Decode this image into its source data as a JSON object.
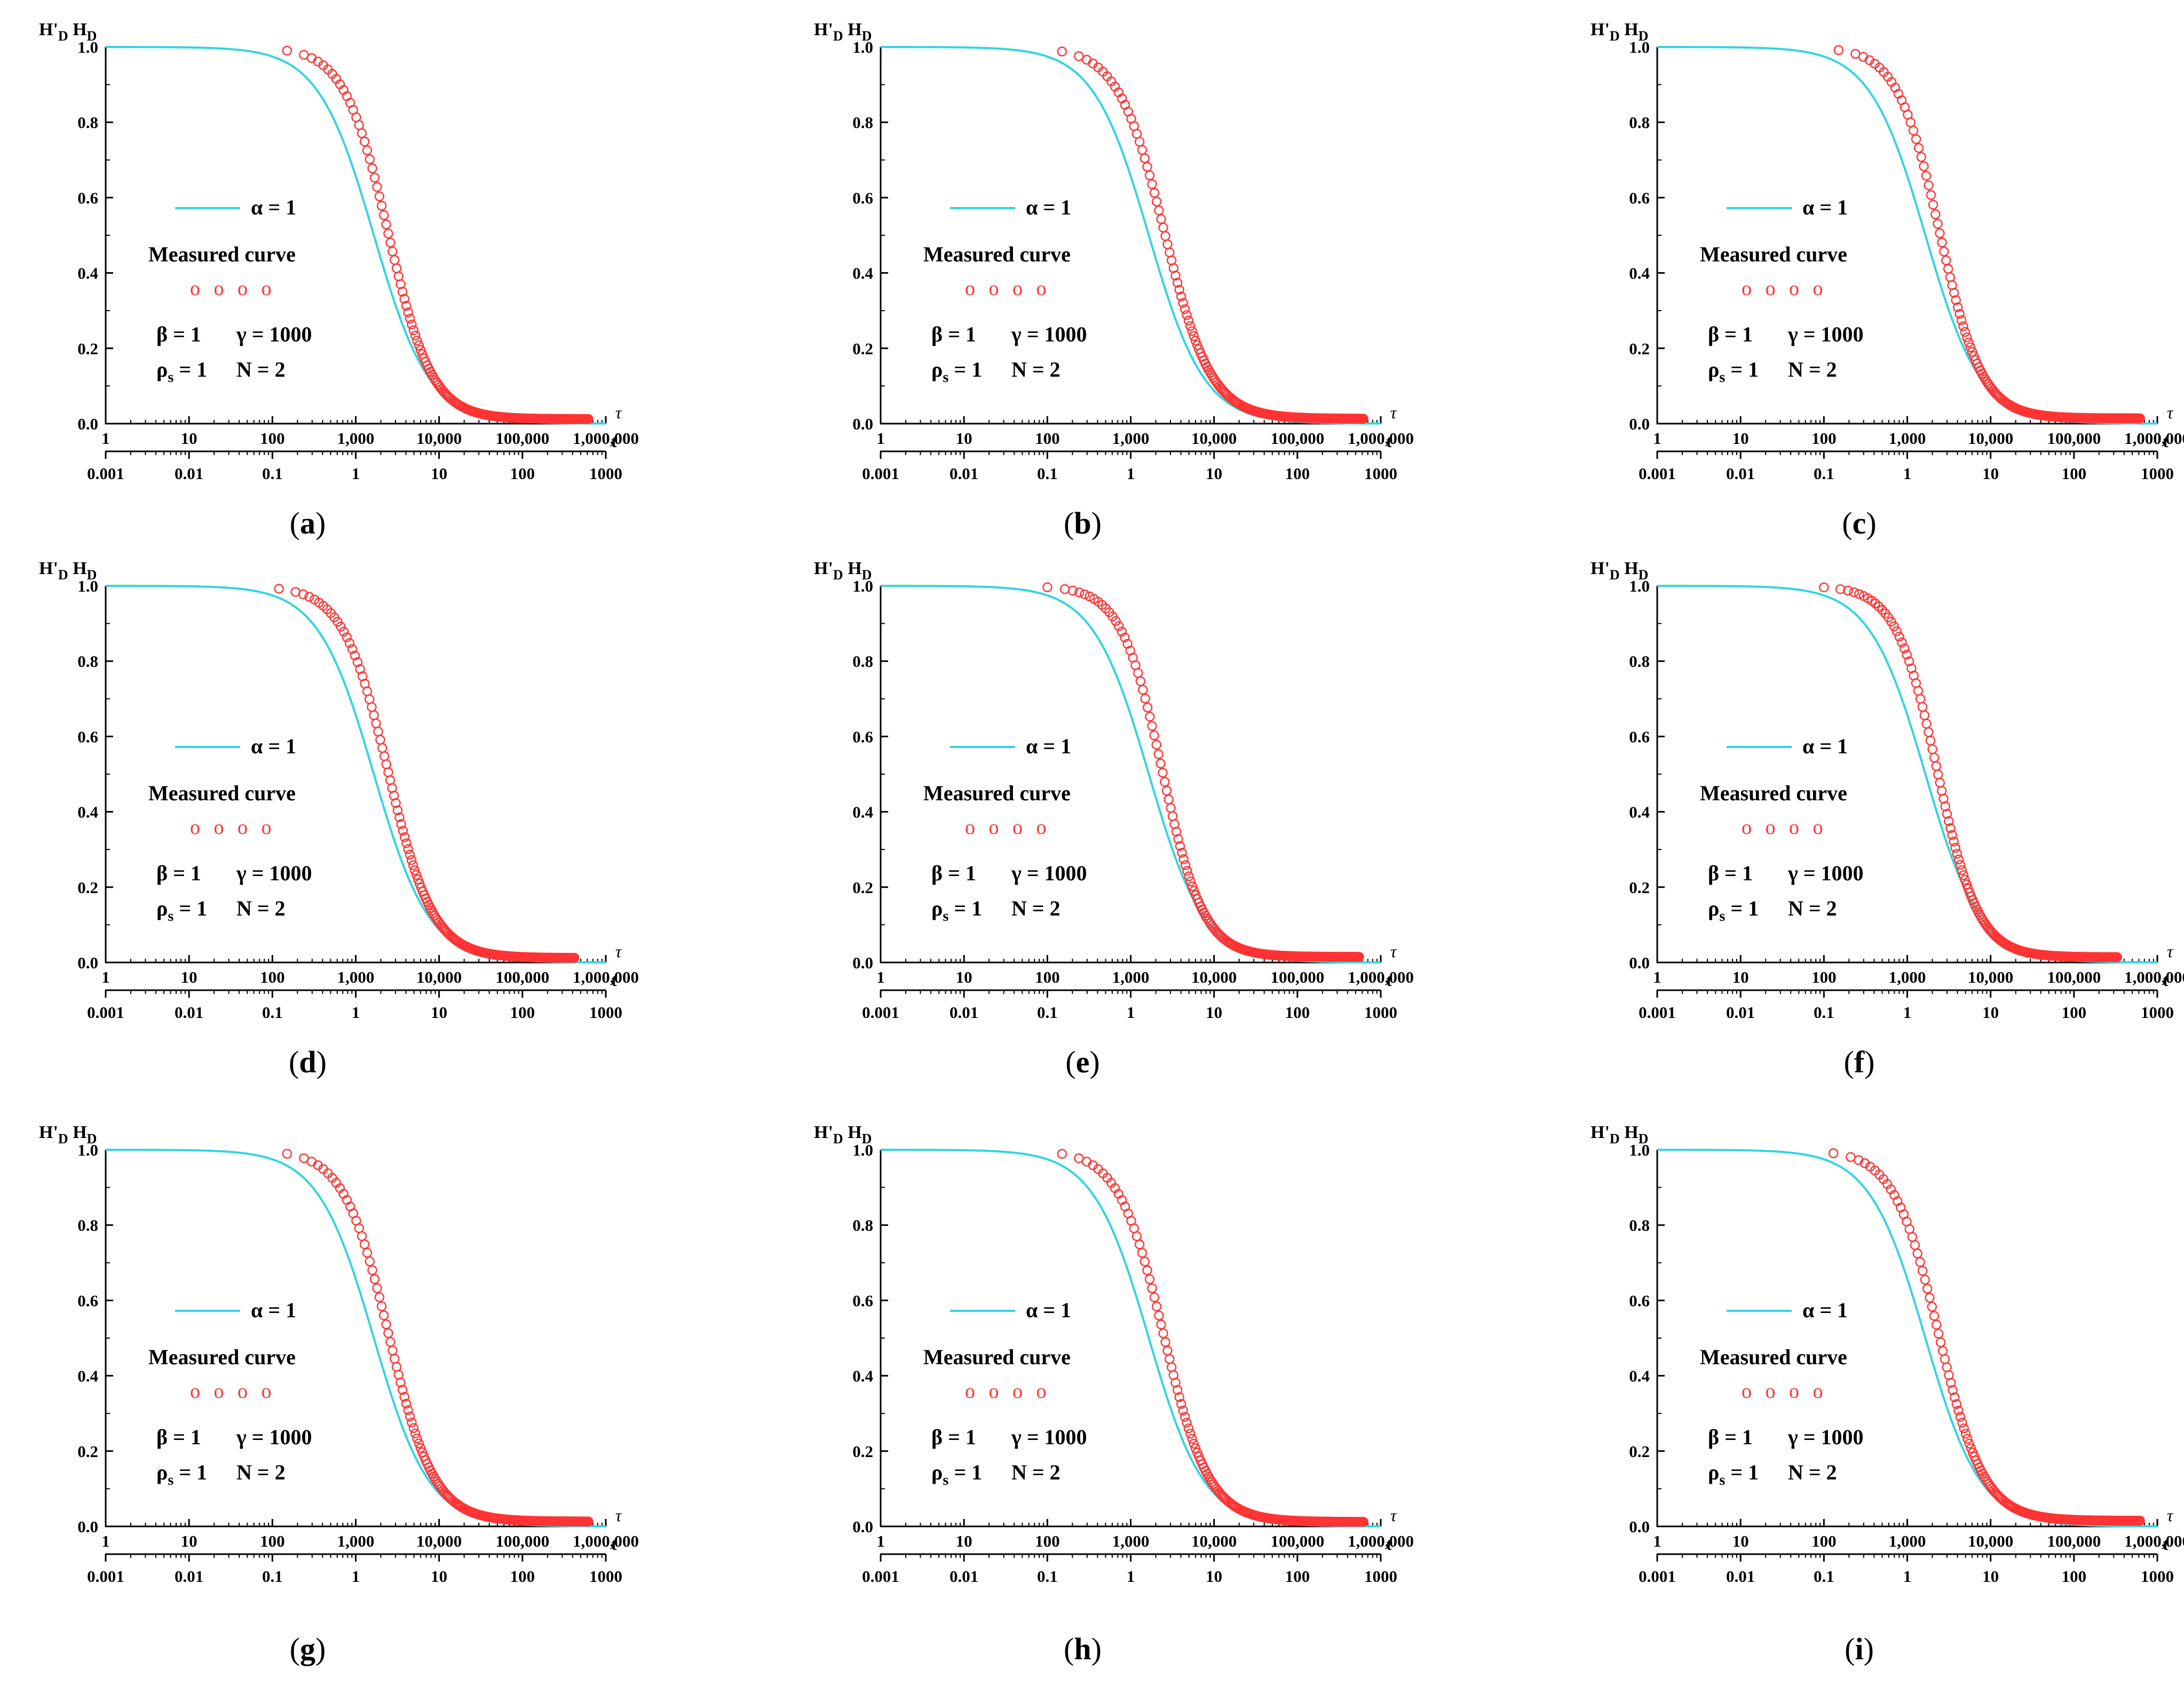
{
  "figure": {
    "colors": {
      "theory": "#33d4e0",
      "measured": "#ff3333",
      "axis": "#000000"
    },
    "common": {
      "type": "line+scatter",
      "y_axis_labels": [
        "H'",
        "D",
        "H",
        "D"
      ],
      "tau_symbol": "τ",
      "t_symbol": "t",
      "y_ticks": [
        "0.0",
        "0.2",
        "0.4",
        "0.6",
        "0.8",
        "1.0"
      ],
      "tau_ticks": [
        "1",
        "10",
        "100",
        "1,000",
        "10,000",
        "100,000",
        "1,000,000"
      ],
      "t_ticks": [
        "0.001",
        "0.01",
        "0.1",
        "1",
        "10",
        "100",
        "1000"
      ],
      "legend": {
        "theory_label": "α = 1",
        "measured_label": "Measured curve",
        "measured_marks": "o o o o",
        "param_line1_a": "β = 1",
        "param_line1_b": "γ = 1000",
        "param_line2_a_main": "ρ",
        "param_line2_a_sub": "s",
        "param_line2_a_rest": " = 1",
        "param_line2_b": "N = 2"
      }
    }
  },
  "chart_data": [
    {
      "panel": "a",
      "caption": "(a)",
      "type": "line+scatter",
      "xscale": "log",
      "xlim_tau": [
        1,
        1000000
      ],
      "xlim_t": [
        0.001,
        1000
      ],
      "ylim": [
        0,
        1
      ],
      "theory": {
        "name": "α = 1",
        "tau_half": 1650,
        "steep": 1.3
      },
      "measured": {
        "name": "Measured curve",
        "tau_start": 150,
        "tau_end": 620000,
        "tau_half": 2450,
        "steep": 1.65,
        "tail": 0.012
      }
    },
    {
      "panel": "b",
      "caption": "(b)",
      "type": "line+scatter",
      "xscale": "log",
      "xlim_tau": [
        1,
        1000000
      ],
      "xlim_t": [
        0.001,
        1000
      ],
      "ylim": [
        0,
        1
      ],
      "theory": {
        "name": "α = 1",
        "tau_half": 1650,
        "steep": 1.3
      },
      "measured": {
        "name": "Measured curve",
        "tau_start": 150,
        "tau_end": 620000,
        "tau_half": 2550,
        "steep": 1.55,
        "tail": 0.013
      }
    },
    {
      "panel": "c",
      "caption": "(c)",
      "type": "line+scatter",
      "xscale": "log",
      "xlim_tau": [
        1,
        1000000
      ],
      "xlim_t": [
        0.001,
        1000
      ],
      "ylim": [
        0,
        1
      ],
      "theory": {
        "name": "α = 1",
        "tau_half": 1650,
        "steep": 1.3
      },
      "measured": {
        "name": "Measured curve",
        "tau_start": 150,
        "tau_end": 620000,
        "tau_half": 2450,
        "steep": 1.7,
        "tail": 0.014
      }
    },
    {
      "panel": "d",
      "caption": "(d)",
      "type": "line+scatter",
      "xscale": "log",
      "xlim_tau": [
        1,
        1000000
      ],
      "xlim_t": [
        0.001,
        1000
      ],
      "ylim": [
        0,
        1
      ],
      "theory": {
        "name": "α = 1",
        "tau_half": 1650,
        "steep": 1.3
      },
      "measured": {
        "name": "Measured curve",
        "tau_start": 120,
        "tau_end": 420000,
        "tau_half": 2450,
        "steep": 1.6,
        "tail": 0.012
      }
    },
    {
      "panel": "e",
      "caption": "(e)",
      "type": "line+scatter",
      "xscale": "log",
      "xlim_tau": [
        1,
        1000000
      ],
      "xlim_t": [
        0.001,
        1000
      ],
      "ylim": [
        0,
        1
      ],
      "theory": {
        "name": "α = 1",
        "tau_half": 1650,
        "steep": 1.3
      },
      "measured": {
        "name": "Measured curve",
        "tau_start": 100,
        "tau_end": 550000,
        "tau_half": 2400,
        "steep": 1.75,
        "tail": 0.015
      }
    },
    {
      "panel": "f",
      "caption": "(f)",
      "type": "line+scatter",
      "xscale": "log",
      "xlim_tau": [
        1,
        1000000
      ],
      "xlim_t": [
        0.001,
        1000
      ],
      "ylim": [
        0,
        1
      ],
      "theory": {
        "name": "α = 1",
        "tau_half": 1650,
        "steep": 1.3
      },
      "measured": {
        "name": "Measured curve",
        "tau_start": 100,
        "tau_end": 330000,
        "tau_half": 2300,
        "steep": 1.75,
        "tail": 0.014
      }
    },
    {
      "panel": "g",
      "caption": "(g)",
      "type": "line+scatter",
      "xscale": "log",
      "xlim_tau": [
        1,
        1000000
      ],
      "xlim_t": [
        0.001,
        1000
      ],
      "ylim": [
        0,
        1
      ],
      "theory": {
        "name": "α = 1",
        "tau_half": 1650,
        "steep": 1.3
      },
      "measured": {
        "name": "Measured curve",
        "tau_start": 150,
        "tau_end": 620000,
        "tau_half": 2500,
        "steep": 1.6,
        "tail": 0.013
      }
    },
    {
      "panel": "h",
      "caption": "(h)",
      "type": "line+scatter",
      "xscale": "log",
      "xlim_tau": [
        1,
        1000000
      ],
      "xlim_t": [
        0.001,
        1000
      ],
      "ylim": [
        0,
        1
      ],
      "theory": {
        "name": "α = 1",
        "tau_half": 1650,
        "steep": 1.3
      },
      "measured": {
        "name": "Measured curve",
        "tau_start": 150,
        "tau_end": 620000,
        "tau_half": 2500,
        "steep": 1.6,
        "tail": 0.012
      }
    },
    {
      "panel": "i",
      "caption": "(i)",
      "type": "line+scatter",
      "xscale": "log",
      "xlim_tau": [
        1,
        1000000
      ],
      "xlim_t": [
        0.001,
        1000
      ],
      "ylim": [
        0,
        1
      ],
      "theory": {
        "name": "α = 1",
        "tau_half": 1650,
        "steep": 1.3
      },
      "measured": {
        "name": "Measured curve",
        "tau_start": 130,
        "tau_end": 620000,
        "tau_half": 2400,
        "steep": 1.6,
        "tail": 0.015
      }
    }
  ]
}
